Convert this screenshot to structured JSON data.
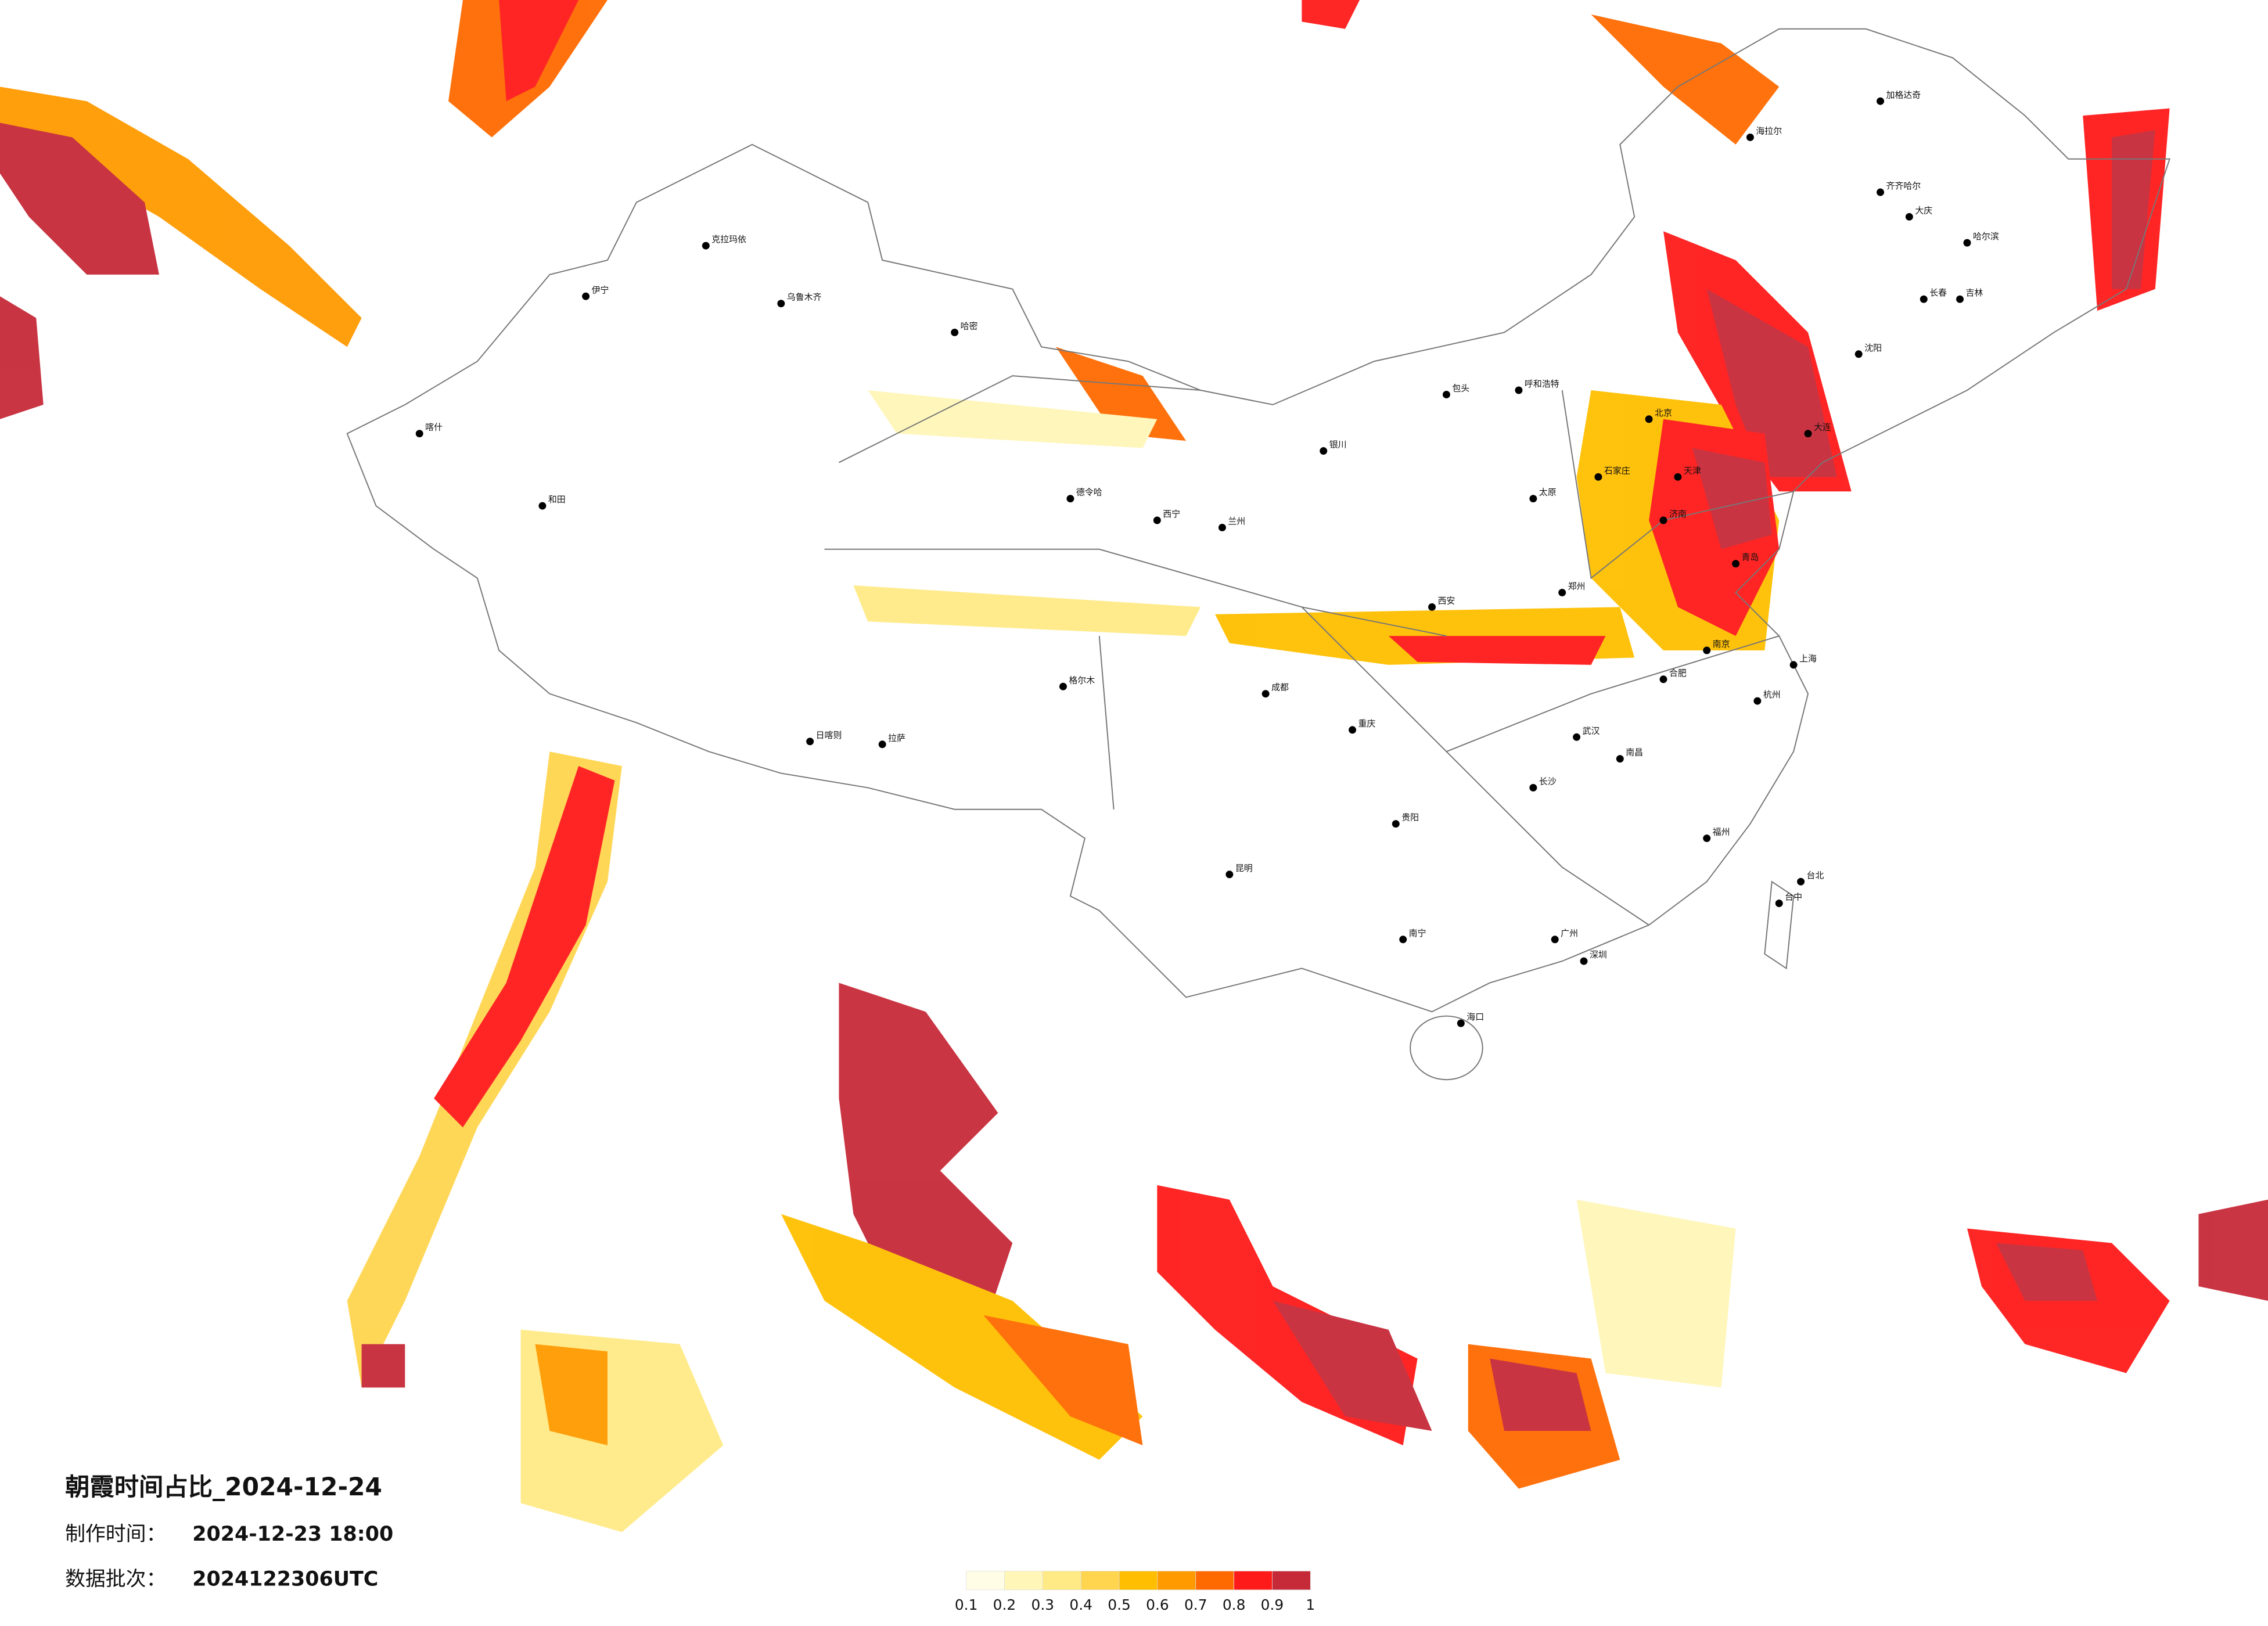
{
  "title": "朝霞时间占比_2024-12-24",
  "made_time": {
    "label": "制作时间：",
    "value": "2024-12-23 18:00"
  },
  "batch": {
    "label": "数据批次：",
    "value": "2024122306UTC"
  },
  "legend": {
    "colors": [
      "#fffde6",
      "#fff6b8",
      "#ffea85",
      "#ffd54f",
      "#ffbf00",
      "#ff9a00",
      "#ff6a00",
      "#ff1a1a",
      "#c62a38"
    ],
    "labels": [
      "0.1",
      "0.2",
      "0.3",
      "0.4",
      "0.5",
      "0.6",
      "0.7",
      "0.8",
      "0.9",
      "1"
    ]
  },
  "cities": [
    "北京",
    "天津",
    "石家庄",
    "太原",
    "哈尔滨",
    "长春",
    "吉林",
    "沈阳",
    "齐齐哈尔",
    "大庆",
    "呼和浩特",
    "包头",
    "银川",
    "兰州",
    "西宁",
    "乌鲁木齐",
    "克拉玛依",
    "喀什",
    "和田",
    "拉萨",
    "日喀则",
    "成都",
    "重庆",
    "贵阳",
    "昆明",
    "南宁",
    "广州",
    "深圳",
    "海口",
    "福州",
    "台北",
    "台中",
    "上海",
    "杭州",
    "南京",
    "合肥",
    "武汉",
    "长沙",
    "南昌",
    "郑州",
    "西安",
    "济南",
    "青岛",
    "大连",
    "哈密",
    "格尔木",
    "德令哈",
    "加格达奇",
    "海拉尔",
    "伊宁"
  ]
}
